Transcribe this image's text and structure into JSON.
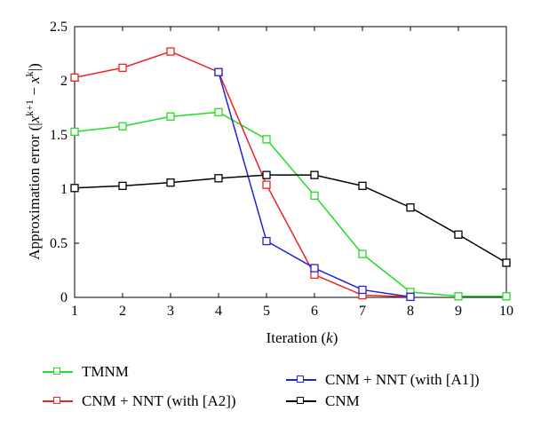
{
  "chart_data": {
    "type": "line",
    "xlabel_prefix": "Iteration (",
    "xlabel_var": "k",
    "xlabel_suffix": ")",
    "ylabel": "Approximation error (|x^{k+1} − x^{k}|)",
    "xlim": [
      1,
      10
    ],
    "ylim": [
      0,
      2.5
    ],
    "x_ticks": [
      1,
      2,
      3,
      4,
      5,
      6,
      7,
      8,
      9,
      10
    ],
    "y_ticks": [
      "0",
      "0.5",
      "1",
      "1.5",
      "2",
      "2.5"
    ],
    "y_tick_values": [
      0,
      0.5,
      1,
      1.5,
      2,
      2.5
    ],
    "grid": false,
    "legend_placement": "bottom-outside",
    "series": [
      {
        "name": "TMNM",
        "color": "#22dd22",
        "x": [
          1,
          2,
          3,
          4,
          5,
          6,
          7,
          8,
          9,
          10
        ],
        "y": [
          1.53,
          1.58,
          1.67,
          1.71,
          1.46,
          0.94,
          0.4,
          0.05,
          0.01,
          0.01
        ]
      },
      {
        "name": "CNM + NNT (with [A2])",
        "color": "#ee2222",
        "x": [
          1,
          2,
          3,
          4,
          5,
          6,
          7,
          8
        ],
        "y": [
          2.03,
          2.12,
          2.27,
          2.08,
          1.04,
          0.21,
          0.02,
          0.005
        ]
      },
      {
        "name": "CNM + NNT (with [A1])",
        "color": "#2222dd",
        "x": [
          4,
          5,
          6,
          7,
          8
        ],
        "y": [
          2.08,
          0.52,
          0.27,
          0.07,
          0.005
        ]
      },
      {
        "name": "CNM",
        "color": "#000000",
        "x": [
          1,
          2,
          3,
          4,
          5,
          6,
          7,
          8,
          9,
          10
        ],
        "y": [
          1.01,
          1.03,
          1.06,
          1.1,
          1.13,
          1.13,
          1.03,
          0.83,
          0.58,
          0.32
        ]
      }
    ]
  }
}
